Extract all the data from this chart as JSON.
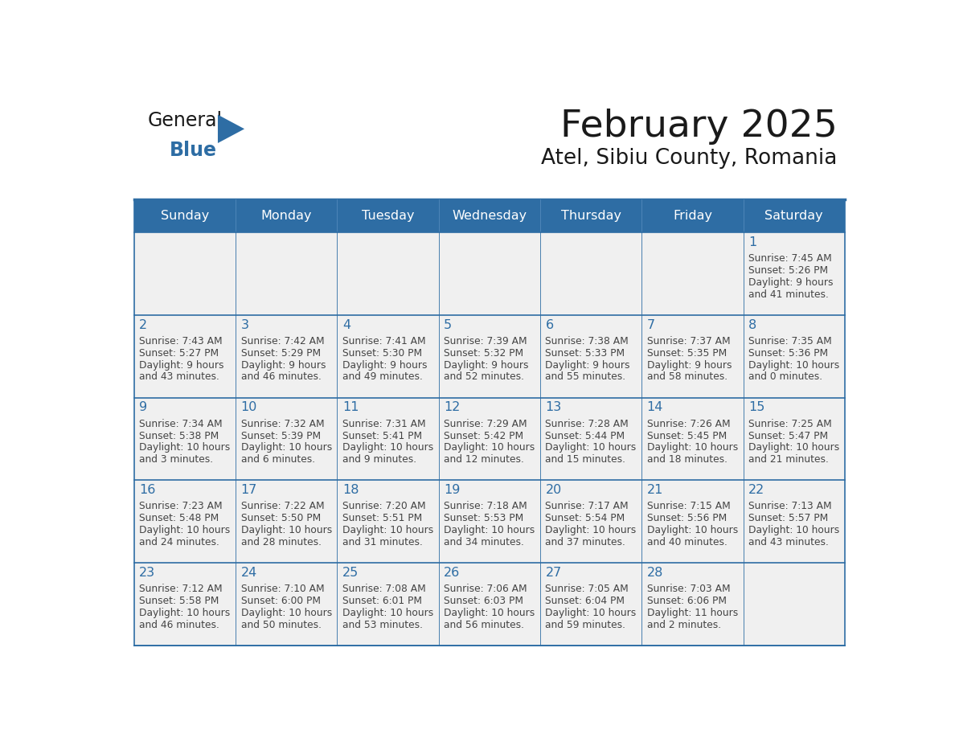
{
  "title": "February 2025",
  "subtitle": "Atel, Sibiu County, Romania",
  "days_of_week": [
    "Sunday",
    "Monday",
    "Tuesday",
    "Wednesday",
    "Thursday",
    "Friday",
    "Saturday"
  ],
  "header_bg": "#2E6DA4",
  "header_text": "#FFFFFF",
  "cell_bg_light": "#F0F0F0",
  "border_color": "#2E6DA4",
  "day_num_color": "#2E6DA4",
  "text_color": "#444444",
  "title_color": "#1a1a1a",
  "logo_general_color": "#1a1a1a",
  "logo_blue_color": "#2E6DA4",
  "logo_triangle_color": "#2E6DA4",
  "calendar_data": [
    [
      null,
      null,
      null,
      null,
      null,
      null,
      {
        "day": 1,
        "sunrise": "7:45 AM",
        "sunset": "5:26 PM",
        "daylight": "9 hours and 41 minutes."
      }
    ],
    [
      {
        "day": 2,
        "sunrise": "7:43 AM",
        "sunset": "5:27 PM",
        "daylight": "9 hours and 43 minutes."
      },
      {
        "day": 3,
        "sunrise": "7:42 AM",
        "sunset": "5:29 PM",
        "daylight": "9 hours and 46 minutes."
      },
      {
        "day": 4,
        "sunrise": "7:41 AM",
        "sunset": "5:30 PM",
        "daylight": "9 hours and 49 minutes."
      },
      {
        "day": 5,
        "sunrise": "7:39 AM",
        "sunset": "5:32 PM",
        "daylight": "9 hours and 52 minutes."
      },
      {
        "day": 6,
        "sunrise": "7:38 AM",
        "sunset": "5:33 PM",
        "daylight": "9 hours and 55 minutes."
      },
      {
        "day": 7,
        "sunrise": "7:37 AM",
        "sunset": "5:35 PM",
        "daylight": "9 hours and 58 minutes."
      },
      {
        "day": 8,
        "sunrise": "7:35 AM",
        "sunset": "5:36 PM",
        "daylight": "10 hours and 0 minutes."
      }
    ],
    [
      {
        "day": 9,
        "sunrise": "7:34 AM",
        "sunset": "5:38 PM",
        "daylight": "10 hours and 3 minutes."
      },
      {
        "day": 10,
        "sunrise": "7:32 AM",
        "sunset": "5:39 PM",
        "daylight": "10 hours and 6 minutes."
      },
      {
        "day": 11,
        "sunrise": "7:31 AM",
        "sunset": "5:41 PM",
        "daylight": "10 hours and 9 minutes."
      },
      {
        "day": 12,
        "sunrise": "7:29 AM",
        "sunset": "5:42 PM",
        "daylight": "10 hours and 12 minutes."
      },
      {
        "day": 13,
        "sunrise": "7:28 AM",
        "sunset": "5:44 PM",
        "daylight": "10 hours and 15 minutes."
      },
      {
        "day": 14,
        "sunrise": "7:26 AM",
        "sunset": "5:45 PM",
        "daylight": "10 hours and 18 minutes."
      },
      {
        "day": 15,
        "sunrise": "7:25 AM",
        "sunset": "5:47 PM",
        "daylight": "10 hours and 21 minutes."
      }
    ],
    [
      {
        "day": 16,
        "sunrise": "7:23 AM",
        "sunset": "5:48 PM",
        "daylight": "10 hours and 24 minutes."
      },
      {
        "day": 17,
        "sunrise": "7:22 AM",
        "sunset": "5:50 PM",
        "daylight": "10 hours and 28 minutes."
      },
      {
        "day": 18,
        "sunrise": "7:20 AM",
        "sunset": "5:51 PM",
        "daylight": "10 hours and 31 minutes."
      },
      {
        "day": 19,
        "sunrise": "7:18 AM",
        "sunset": "5:53 PM",
        "daylight": "10 hours and 34 minutes."
      },
      {
        "day": 20,
        "sunrise": "7:17 AM",
        "sunset": "5:54 PM",
        "daylight": "10 hours and 37 minutes."
      },
      {
        "day": 21,
        "sunrise": "7:15 AM",
        "sunset": "5:56 PM",
        "daylight": "10 hours and 40 minutes."
      },
      {
        "day": 22,
        "sunrise": "7:13 AM",
        "sunset": "5:57 PM",
        "daylight": "10 hours and 43 minutes."
      }
    ],
    [
      {
        "day": 23,
        "sunrise": "7:12 AM",
        "sunset": "5:58 PM",
        "daylight": "10 hours and 46 minutes."
      },
      {
        "day": 24,
        "sunrise": "7:10 AM",
        "sunset": "6:00 PM",
        "daylight": "10 hours and 50 minutes."
      },
      {
        "day": 25,
        "sunrise": "7:08 AM",
        "sunset": "6:01 PM",
        "daylight": "10 hours and 53 minutes."
      },
      {
        "day": 26,
        "sunrise": "7:06 AM",
        "sunset": "6:03 PM",
        "daylight": "10 hours and 56 minutes."
      },
      {
        "day": 27,
        "sunrise": "7:05 AM",
        "sunset": "6:04 PM",
        "daylight": "10 hours and 59 minutes."
      },
      {
        "day": 28,
        "sunrise": "7:03 AM",
        "sunset": "6:06 PM",
        "daylight": "11 hours and 2 minutes."
      },
      null
    ]
  ]
}
